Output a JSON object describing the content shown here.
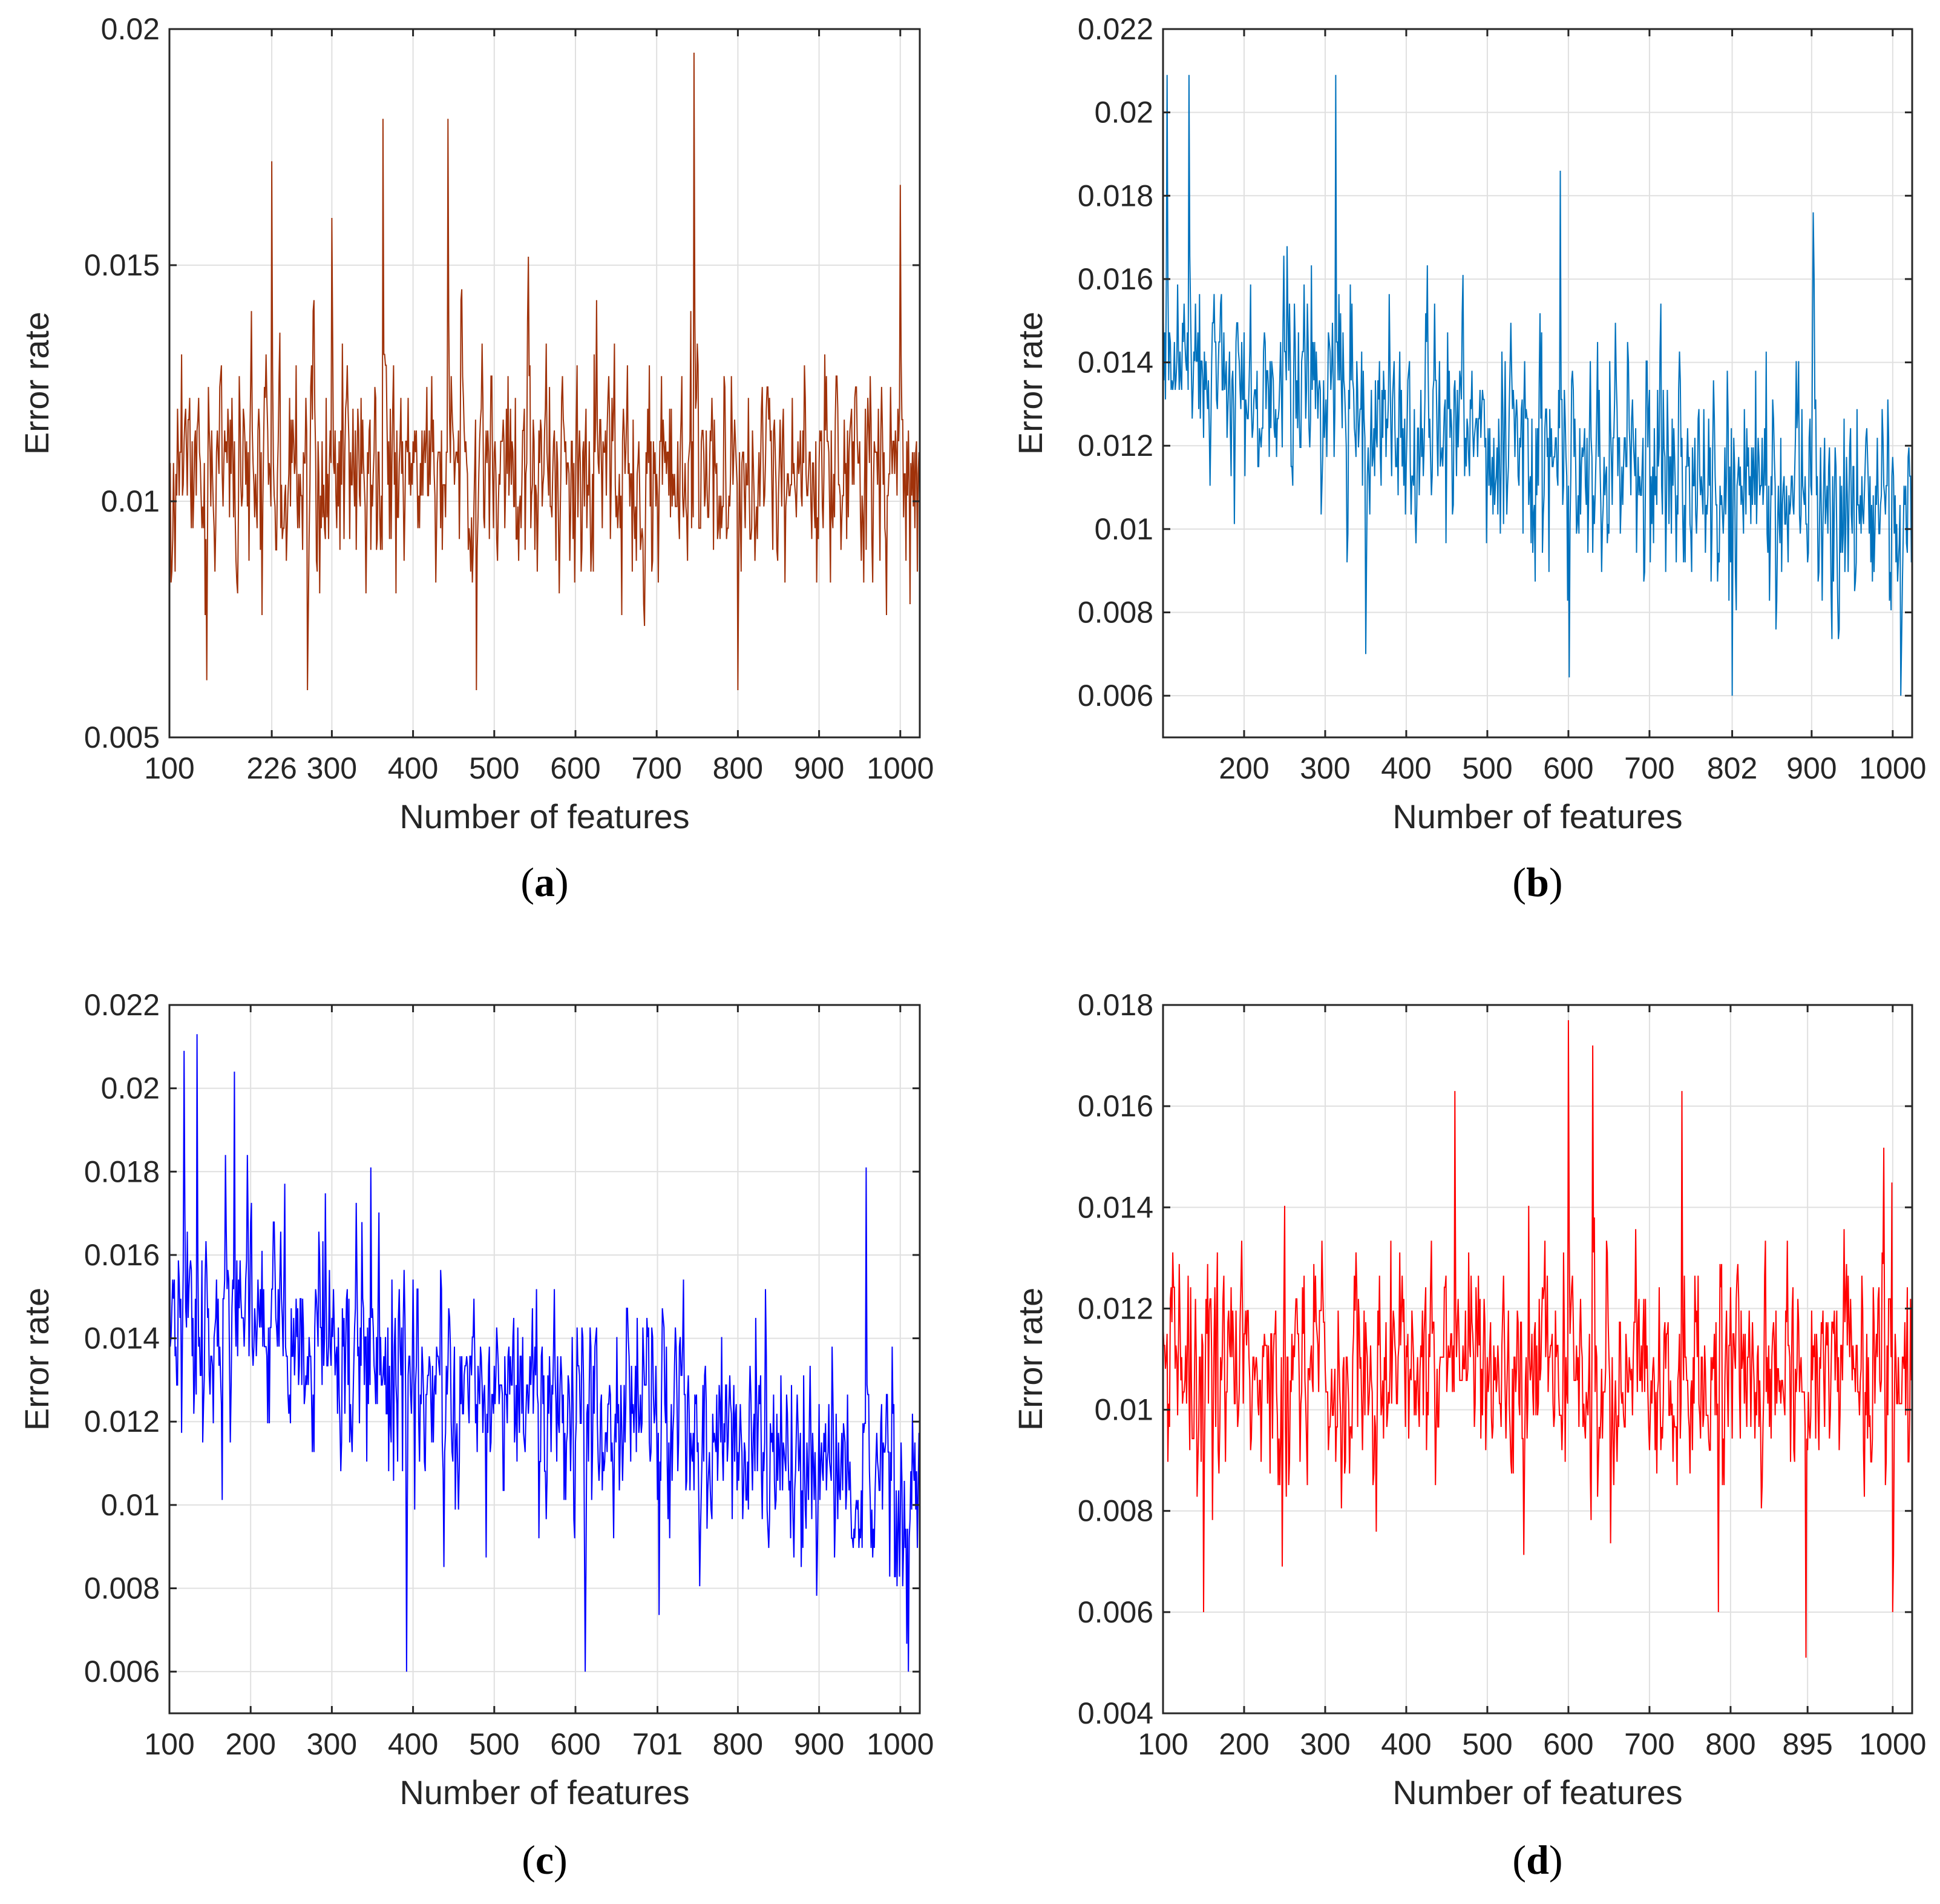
{
  "chart_data": [
    {
      "type": "line",
      "panel_label": "a",
      "xlabel": "Number of features",
      "ylabel": "Error rate",
      "xlim": [
        100,
        1024
      ],
      "ylim": [
        0.005,
        0.02
      ],
      "xticks": [
        100,
        226,
        300,
        400,
        500,
        600,
        700,
        800,
        900,
        1000
      ],
      "xtick_labels": [
        "100",
        "226",
        "300",
        "400",
        "500",
        "600",
        "700",
        "800",
        "900",
        "1000"
      ],
      "yticks": [
        0.005,
        0.01,
        0.015,
        0.02
      ],
      "ytick_labels": [
        "0.005",
        "0.01",
        "0.015",
        "0.02"
      ],
      "grid": true,
      "series": [
        {
          "name": "a",
          "color": "#a0320a",
          "x_start": 100,
          "x_end": 1024,
          "baseline": 0.0105,
          "spread": 0.0016,
          "trend_end": 0.0105,
          "floor": 0.006,
          "ceil": 0.0195,
          "spikes": [
            [
              226,
              0.0172
            ],
            [
              300,
              0.016
            ],
            [
              363,
              0.0181
            ],
            [
              443,
              0.0181
            ],
            [
              746,
              0.0195
            ],
            [
              1000,
              0.0167
            ],
            [
              270,
              0.006
            ],
            [
              478,
              0.006
            ],
            [
              800,
              0.006
            ]
          ],
          "seed": 11
        }
      ]
    },
    {
      "type": "line",
      "panel_label": "b",
      "xlabel": "Number of features",
      "ylabel": "Error rate",
      "xlim": [
        100,
        1024
      ],
      "ylim": [
        0.005,
        0.022
      ],
      "xticks": [
        200,
        300,
        400,
        500,
        600,
        700,
        802,
        900,
        1000
      ],
      "xtick_labels": [
        "200",
        "300",
        "400",
        "500",
        "600",
        "700",
        "802",
        "900",
        "1000"
      ],
      "yticks": [
        0.006,
        0.008,
        0.01,
        0.012,
        0.014,
        0.016,
        0.018,
        0.02,
        0.022
      ],
      "ytick_labels": [
        "0.006",
        "0.008",
        "0.01",
        "0.012",
        "0.014",
        "0.016",
        "0.018",
        "0.02",
        "0.022"
      ],
      "grid": true,
      "series": [
        {
          "name": "b",
          "color": "#0072bd",
          "x_start": 100,
          "x_end": 1024,
          "baseline": 0.0136,
          "spread": 0.0017,
          "trend_end": 0.0102,
          "floor": 0.006,
          "ceil": 0.0209,
          "spikes": [
            [
              105,
              0.0209
            ],
            [
              132,
              0.0209
            ],
            [
              313,
              0.0209
            ],
            [
              590,
              0.0186
            ],
            [
              902,
              0.0176
            ],
            [
              802,
              0.006
            ],
            [
              1010,
              0.006
            ],
            [
              350,
              0.007
            ]
          ],
          "seed": 23
        }
      ]
    },
    {
      "type": "line",
      "panel_label": "c",
      "xlabel": "Number of features",
      "ylabel": "Error rate",
      "xlim": [
        100,
        1024
      ],
      "ylim": [
        0.005,
        0.022
      ],
      "xticks": [
        100,
        200,
        300,
        400,
        500,
        600,
        701,
        800,
        900,
        1000
      ],
      "xtick_labels": [
        "100",
        "200",
        "300",
        "400",
        "500",
        "600",
        "701",
        "800",
        "900",
        "1000"
      ],
      "yticks": [
        0.006,
        0.008,
        0.01,
        0.012,
        0.014,
        0.016,
        0.018,
        0.02,
        0.022
      ],
      "ytick_labels": [
        "0.006",
        "0.008",
        "0.01",
        "0.012",
        "0.014",
        "0.016",
        "0.018",
        "0.02",
        "0.022"
      ],
      "grid": true,
      "series": [
        {
          "name": "c",
          "color": "#0000ff",
          "x_start": 100,
          "x_end": 1024,
          "baseline": 0.0145,
          "spread": 0.0018,
          "trend_end": 0.0105,
          "floor": 0.006,
          "ceil": 0.0213,
          "spikes": [
            [
              118,
              0.0209
            ],
            [
              134,
              0.0213
            ],
            [
              180,
              0.0204
            ],
            [
              348,
              0.0181
            ],
            [
              958,
              0.0181
            ],
            [
              392,
              0.006
            ],
            [
              612,
              0.006
            ],
            [
              1010,
              0.006
            ]
          ],
          "seed": 37
        }
      ]
    },
    {
      "type": "line",
      "panel_label": "d",
      "xlabel": "Number of features",
      "ylabel": "Error rate",
      "xlim": [
        100,
        1024
      ],
      "ylim": [
        0.004,
        0.018
      ],
      "xticks": [
        100,
        200,
        300,
        400,
        500,
        600,
        700,
        800,
        895,
        1000
      ],
      "xtick_labels": [
        "100",
        "200",
        "300",
        "400",
        "500",
        "600",
        "700",
        "800",
        "895",
        "1000"
      ],
      "yticks": [
        0.004,
        0.006,
        0.008,
        0.01,
        0.012,
        0.014,
        0.016,
        0.018
      ],
      "ytick_labels": [
        "0.004",
        "0.006",
        "0.008",
        "0.01",
        "0.012",
        "0.014",
        "0.016",
        "0.018"
      ],
      "grid": true,
      "series": [
        {
          "name": "d",
          "color": "#ff0000",
          "x_start": 100,
          "x_end": 1024,
          "baseline": 0.0107,
          "spread": 0.0015,
          "trend_end": 0.0107,
          "floor": 0.005,
          "ceil": 0.0177,
          "spikes": [
            [
              600,
              0.0177
            ],
            [
              630,
              0.0172
            ],
            [
              460,
              0.0163
            ],
            [
              740,
              0.0163
            ],
            [
              893,
              0.0051
            ],
            [
              150,
              0.006
            ],
            [
              785,
              0.006
            ],
            [
              1000,
              0.006
            ]
          ],
          "seed": 53
        }
      ]
    }
  ]
}
